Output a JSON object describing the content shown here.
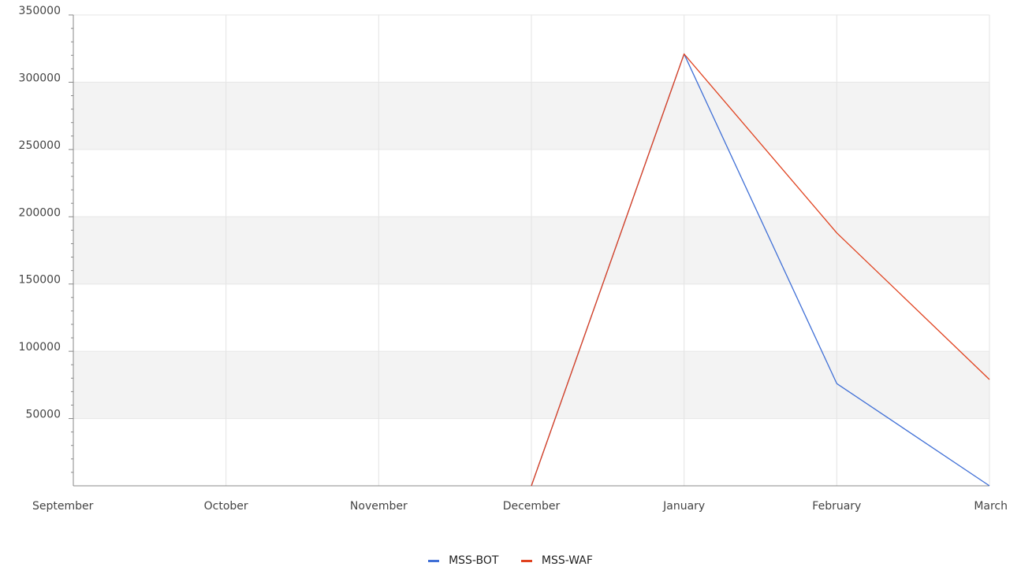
{
  "chart_data": {
    "type": "line",
    "title": "",
    "xlabel": "",
    "ylabel": "",
    "categories": [
      "September",
      "October",
      "November",
      "December",
      "January",
      "February",
      "March"
    ],
    "ylim": [
      0,
      350000
    ],
    "yticks": [
      50000,
      100000,
      150000,
      200000,
      250000,
      300000,
      350000
    ],
    "ytick_labels": [
      "50000",
      "100000",
      "150000",
      "200000",
      "250000",
      "300000",
      "350000"
    ],
    "grid": true,
    "alternating_bands": true,
    "band_color": "#f3f3f3",
    "legend_position": "bottom-center",
    "series": [
      {
        "name": "MSS-BOT",
        "color": "#3f6fd6",
        "values": [
          null,
          null,
          null,
          0,
          321000,
          76000,
          0
        ]
      },
      {
        "name": "MSS-WAF",
        "color": "#e0421f",
        "values": [
          null,
          null,
          null,
          0,
          321000,
          188000,
          79000
        ]
      }
    ]
  }
}
